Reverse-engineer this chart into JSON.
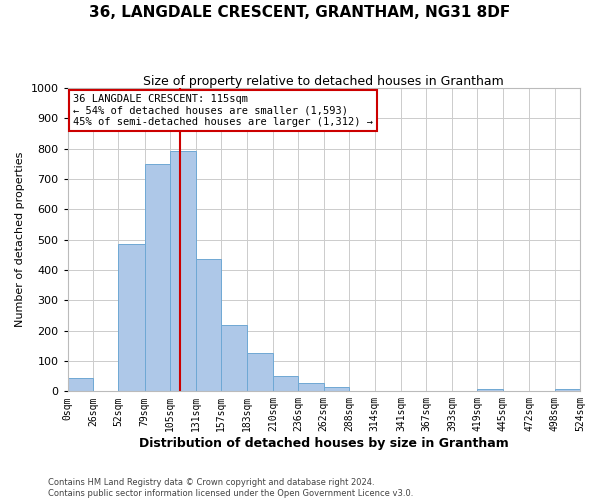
{
  "title": "36, LANGDALE CRESCENT, GRANTHAM, NG31 8DF",
  "subtitle": "Size of property relative to detached houses in Grantham",
  "xlabel": "Distribution of detached houses by size in Grantham",
  "ylabel": "Number of detached properties",
  "bin_edges": [
    0,
    26,
    52,
    79,
    105,
    131,
    157,
    183,
    210,
    236,
    262,
    288,
    314,
    341,
    367,
    393,
    419,
    445,
    472,
    498,
    524
  ],
  "bin_labels": [
    "0sqm",
    "26sqm",
    "52sqm",
    "79sqm",
    "105sqm",
    "131sqm",
    "157sqm",
    "183sqm",
    "210sqm",
    "236sqm",
    "262sqm",
    "288sqm",
    "314sqm",
    "341sqm",
    "367sqm",
    "393sqm",
    "419sqm",
    "445sqm",
    "472sqm",
    "498sqm",
    "524sqm"
  ],
  "counts": [
    43,
    0,
    485,
    748,
    793,
    437,
    220,
    125,
    52,
    28,
    14,
    0,
    0,
    0,
    0,
    0,
    8,
    0,
    0,
    8
  ],
  "bar_color": "#aec8e8",
  "bar_edge_color": "#6fa8d4",
  "property_line_x": 115,
  "property_line_color": "#cc0000",
  "annotation_text": "36 LANGDALE CRESCENT: 115sqm\n← 54% of detached houses are smaller (1,593)\n45% of semi-detached houses are larger (1,312) →",
  "annotation_box_color": "#ffffff",
  "annotation_box_edge_color": "#cc0000",
  "ylim": [
    0,
    1000
  ],
  "yticks": [
    0,
    100,
    200,
    300,
    400,
    500,
    600,
    700,
    800,
    900,
    1000
  ],
  "footer_line1": "Contains HM Land Registry data © Crown copyright and database right 2024.",
  "footer_line2": "Contains public sector information licensed under the Open Government Licence v3.0.",
  "background_color": "#ffffff",
  "grid_color": "#cccccc"
}
